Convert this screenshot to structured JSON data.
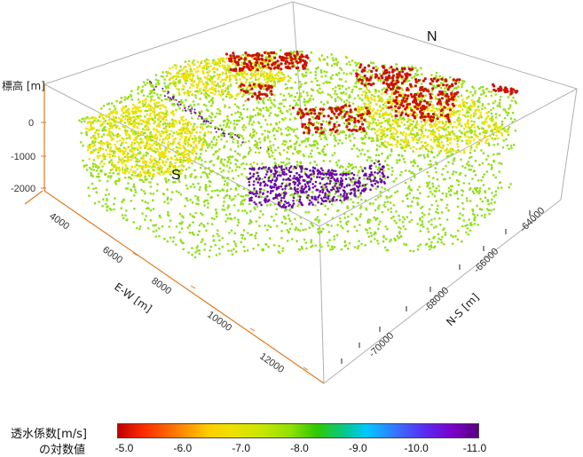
{
  "chart_data": {
    "type": "scatter",
    "subtype": "3d-point-cloud",
    "labels": {
      "elevation_axis": "標高 [m]",
      "ew_axis": "E-W [m]",
      "ns_axis": "N-S [m]",
      "north": "N",
      "south": "S"
    },
    "elevation_ticks": [
      "0",
      "-1000",
      "-2000"
    ],
    "ew_ticks": [
      "4000",
      "6000",
      "8000",
      "10000",
      "12000"
    ],
    "ns_ticks": [
      "-64000",
      "-66000",
      "-68000",
      "-70000"
    ],
    "colorbar": {
      "title_line1": "透水係数[m/s]",
      "title_line2": "の対数値",
      "min": -5.0,
      "max": -11.0,
      "ticks": [
        "-5.0",
        "-6.0",
        "-7.0",
        "-8.0",
        "-9.0",
        "-10.0",
        "-11.0"
      ]
    },
    "regions": [
      {
        "name": "red",
        "color": "#cc1400"
      },
      {
        "name": "yellow",
        "color": "#f2e200"
      },
      {
        "name": "green",
        "color": "#8fe018"
      },
      {
        "name": "purple",
        "color": "#6a0aa8"
      }
    ]
  }
}
